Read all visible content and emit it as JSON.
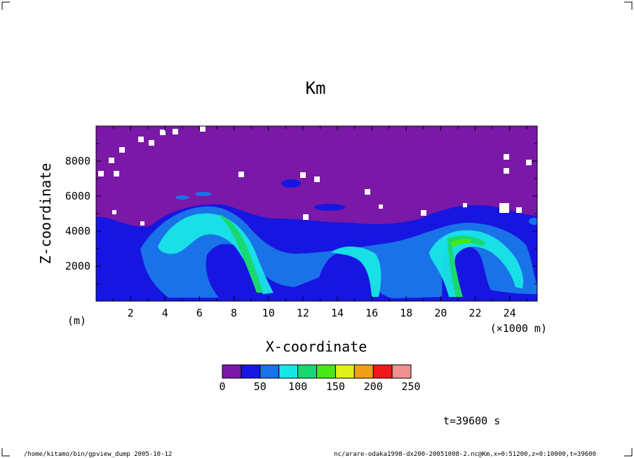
{
  "chart_data": {
    "type": "heatmap",
    "title": "Km",
    "xlabel": "X-coordinate",
    "ylabel": "Z-coordinate",
    "x_unit_label": "(×1000 m)",
    "y_unit_label": "(m)",
    "xlim": [
      0,
      25.6
    ],
    "ylim": [
      0,
      10000
    ],
    "x_ticks": [
      "2",
      "4",
      "6",
      "8",
      "10",
      "12",
      "14",
      "16",
      "18",
      "20",
      "22",
      "24"
    ],
    "y_ticks": [
      "2000",
      "4000",
      "6000",
      "8000"
    ],
    "colorbar": {
      "levels": [
        "0",
        "50",
        "100",
        "150",
        "200",
        "250"
      ],
      "colors": [
        "#7a18a8",
        "#1616e0",
        "#1a72e8",
        "#18e6e6",
        "#18d870",
        "#48e818",
        "#e0f018",
        "#f0a018",
        "#f01818",
        "#f09090"
      ]
    },
    "annotation": "t=39600 s"
  },
  "footer": {
    "left": "/home/kitamo/bin/gpview_dump  2005-10-12",
    "right": "nc/arare-odaka1998-dx200-20051008-2.nc@Km,x=0:51200,z=0:10000,t=39600"
  }
}
